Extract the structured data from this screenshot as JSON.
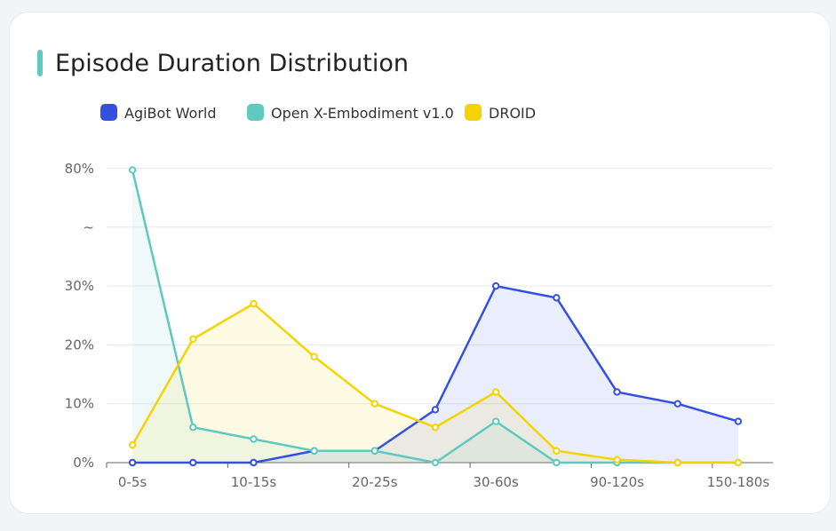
{
  "title": "Episode Duration Distribution",
  "chart_data": {
    "type": "line",
    "title": "Episode Duration Distribution",
    "categories": [
      "0-5s",
      "5-10s",
      "10-15s",
      "15-20s",
      "20-25s",
      "25-30s",
      "30-60s",
      "60-90s",
      "90-120s",
      "120-150s",
      "150-180s"
    ],
    "visible_x_labels": [
      "0-5s",
      "10-15s",
      "20-25s",
      "30-60s",
      "90-120s",
      "150-180s"
    ],
    "y_ticks": [
      "0%",
      "10%",
      "20%",
      "30%",
      "~",
      "80%"
    ],
    "y_axis_break": [
      40,
      80
    ],
    "ylim": [
      0,
      80
    ],
    "grid": true,
    "legend_position": "top",
    "series": [
      {
        "name": "AgiBot World",
        "color": "#3550e0",
        "values": [
          0,
          0,
          0,
          2,
          2,
          9,
          30,
          28,
          12,
          10,
          7
        ]
      },
      {
        "name": "Open X-Embodiment v1.0",
        "color": "#5fc9c0",
        "values": [
          79,
          6,
          4,
          2,
          2,
          0,
          7,
          0,
          0,
          0,
          0
        ]
      },
      {
        "name": "DROID",
        "color": "#f5d300",
        "values": [
          3,
          21,
          27,
          18,
          10,
          6,
          12,
          2,
          0.5,
          0,
          0
        ]
      }
    ]
  }
}
